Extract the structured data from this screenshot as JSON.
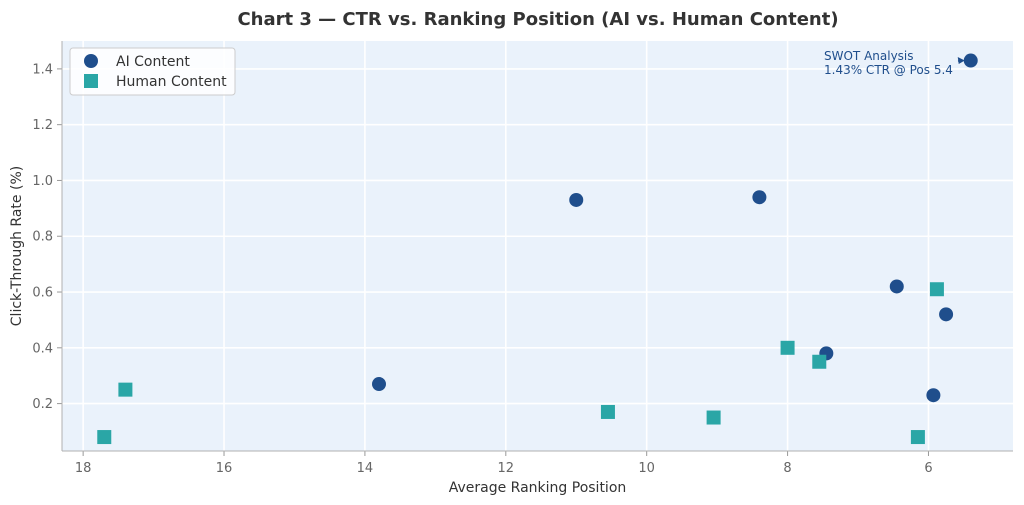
{
  "chart_data": {
    "type": "scatter",
    "title": "Chart 3 — CTR vs. Ranking Position (AI vs. Human Content)",
    "xlabel": "Average Ranking Position",
    "ylabel": "Click-Through Rate (%)",
    "xlim": [
      18.3,
      4.8
    ],
    "ylim": [
      0.03,
      1.5
    ],
    "x_inverted": true,
    "x_ticks": [
      18,
      16,
      14,
      12,
      10,
      8,
      6
    ],
    "y_ticks": [
      0.2,
      0.4,
      0.6,
      0.8,
      1.0,
      1.2,
      1.4
    ],
    "x_tick_labels": [
      "18",
      "16",
      "14",
      "12",
      "10",
      "8",
      "6"
    ],
    "y_tick_labels": [
      "0.2",
      "0.4",
      "0.6",
      "0.8",
      "1.0",
      "1.2",
      "1.4"
    ],
    "grid": true,
    "legend_position": "top-left",
    "background_color": "#EAF2FB",
    "series": [
      {
        "name": "AI Content",
        "marker": "circle",
        "color": "#1F4E8C",
        "points": [
          {
            "x": 5.4,
            "y": 1.43
          },
          {
            "x": 11.0,
            "y": 0.93
          },
          {
            "x": 8.4,
            "y": 0.94
          },
          {
            "x": 6.45,
            "y": 0.62
          },
          {
            "x": 5.75,
            "y": 0.52
          },
          {
            "x": 7.45,
            "y": 0.38
          },
          {
            "x": 13.8,
            "y": 0.27
          },
          {
            "x": 5.93,
            "y": 0.23
          }
        ]
      },
      {
        "name": "Human Content",
        "marker": "square",
        "color": "#2AA6A6",
        "points": [
          {
            "x": 17.7,
            "y": 0.08
          },
          {
            "x": 17.4,
            "y": 0.25
          },
          {
            "x": 10.55,
            "y": 0.17
          },
          {
            "x": 9.05,
            "y": 0.15
          },
          {
            "x": 8.0,
            "y": 0.4
          },
          {
            "x": 7.55,
            "y": 0.35
          },
          {
            "x": 5.88,
            "y": 0.61
          },
          {
            "x": 6.15,
            "y": 0.08
          }
        ]
      }
    ],
    "annotation": {
      "line1": "SWOT Analysis",
      "line2": "1.43% CTR @ Pos 5.4",
      "target": {
        "x": 5.4,
        "y": 1.43
      }
    }
  }
}
